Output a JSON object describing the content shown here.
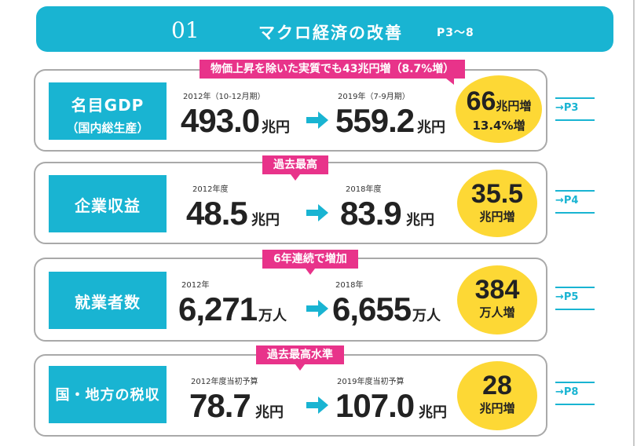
{
  "banner": {
    "number": "01",
    "title": "マクロ経済の改善",
    "pages": "P3～8"
  },
  "rows": [
    {
      "label": "名目GDP",
      "sublabel": "（国内総生産）",
      "tag": "物価上昇を除いた実質でも43兆円増（8.7%増）",
      "from_period": "2012年（10-12月期）",
      "from_value": "493.0",
      "from_unit": "兆円",
      "to_period": "2019年（7-9月期）",
      "to_value": "559.2",
      "to_unit": "兆円",
      "change_value": "66",
      "change_unit": "兆円増",
      "change_sub": "13.4%増",
      "page": "→P3"
    },
    {
      "label": "企業収益",
      "tag": "過去最高",
      "from_period": "2012年度",
      "from_value": "48.5",
      "from_unit": "兆円",
      "to_period": "2018年度",
      "to_value": "83.9",
      "to_unit": "兆円",
      "change_value": "35.5",
      "change_unit": "兆円増",
      "page": "→P4"
    },
    {
      "label": "就業者数",
      "tag": "6年連続で増加",
      "from_period": "2012年",
      "from_value": "6,271",
      "from_unit": "万人",
      "to_period": "2018年",
      "to_value": "6,655",
      "to_unit": "万人",
      "change_value": "384",
      "change_unit": "万人増",
      "page": "→P5"
    },
    {
      "label": "国・地方の税収",
      "tag": "過去最高水準",
      "from_period": "2012年度当初予算",
      "from_value": "78.7",
      "from_unit": "兆円",
      "to_period": "2019年度当初予算",
      "to_value": "107.0",
      "to_unit": "兆円",
      "change_value": "28",
      "change_unit": "兆円増",
      "page": "→P8"
    }
  ],
  "colors": {
    "accent": "#19b4d2",
    "tag": "#e8338a",
    "circle": "#fdd835",
    "border": "#a9a9a9"
  },
  "icons": {
    "arrow": "right-arrow-icon"
  }
}
